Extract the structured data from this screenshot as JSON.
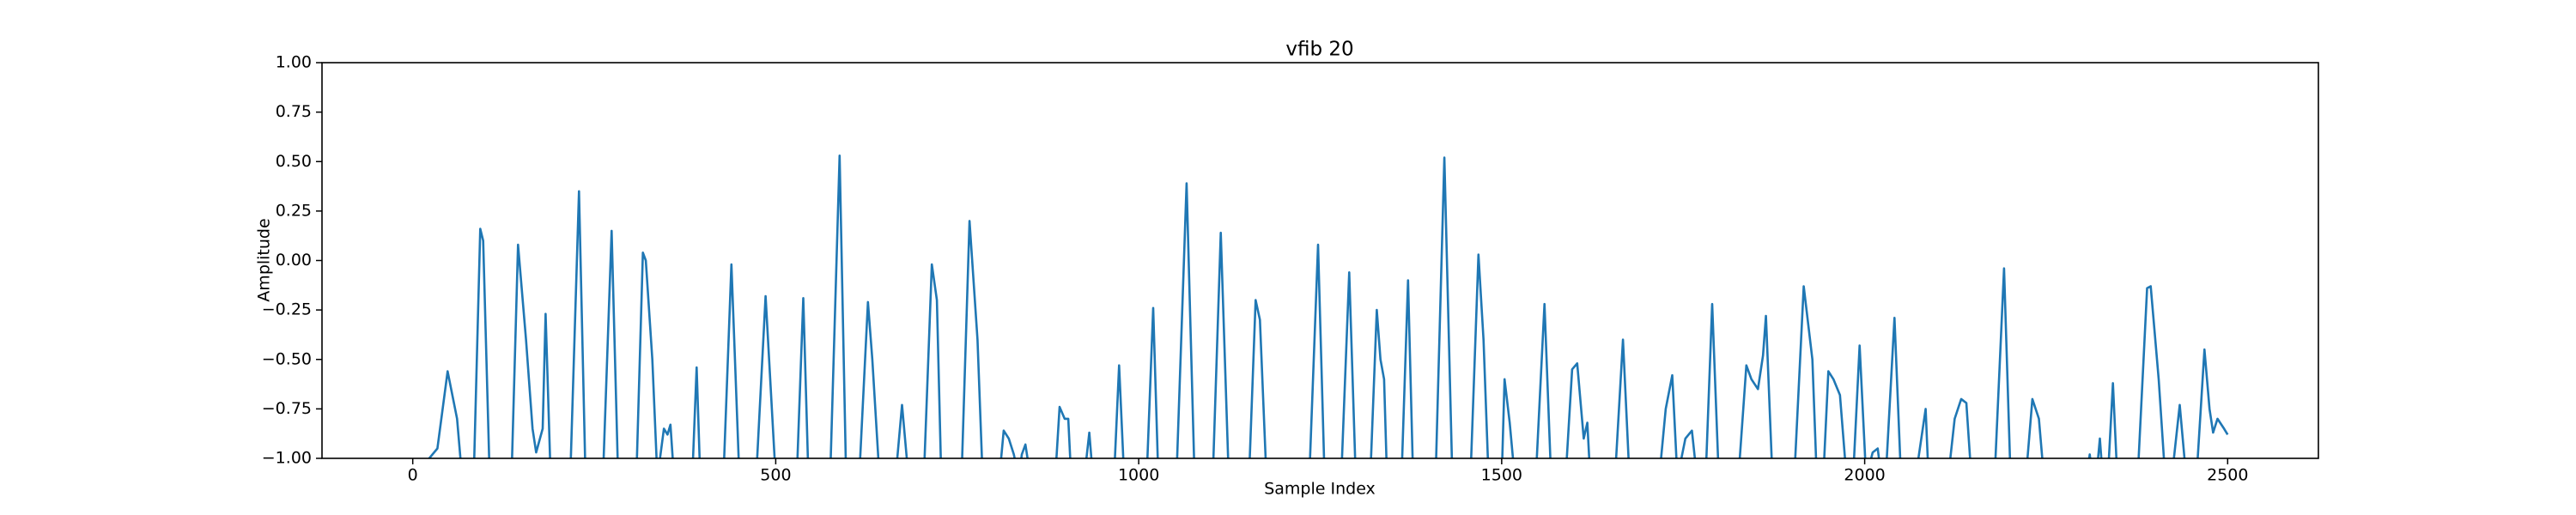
{
  "chart_data": {
    "type": "line",
    "title": "vfib 20",
    "xlabel": "Sample Index",
    "ylabel": "Amplitude",
    "x": [
      0,
      34,
      48,
      61,
      68,
      84,
      93,
      97,
      106,
      136,
      145,
      156,
      165,
      170,
      179,
      183,
      190,
      217,
      229,
      238,
      262,
      274,
      283,
      308,
      317,
      321,
      330,
      337,
      346,
      351,
      355,
      360,
      385,
      391,
      396,
      428,
      439,
      450,
      473,
      486,
      500,
      529,
      538,
      545,
      575,
      588,
      597,
      615,
      627,
      633,
      643,
      665,
      674,
      683,
      704,
      715,
      722,
      728,
      756,
      767,
      778,
      785,
      808,
      814,
      821,
      828,
      835,
      839,
      844,
      851,
      885,
      891,
      898,
      903,
      907,
      925,
      932,
      937,
      966,
      973,
      980,
      1011,
      1020,
      1027,
      1052,
      1066,
      1077,
      1102,
      1113,
      1124,
      1152,
      1161,
      1167,
      1176,
      1235,
      1247,
      1256,
      1279,
      1290,
      1299,
      1319,
      1328,
      1333,
      1338,
      1342,
      1362,
      1371,
      1378,
      1409,
      1421,
      1432,
      1457,
      1468,
      1475,
      1482,
      1500,
      1504,
      1511,
      1518,
      1547,
      1559,
      1568,
      1588,
      1597,
      1604,
      1613,
      1618,
      1622,
      1656,
      1667,
      1676,
      1717,
      1726,
      1735,
      1742,
      1753,
      1762,
      1769,
      1781,
      1790,
      1799,
      1826,
      1837,
      1844,
      1853,
      1860,
      1864,
      1873,
      1903,
      1916,
      1928,
      1934,
      1943,
      1950,
      1957,
      1966,
      1975,
      1984,
      1993,
      2002,
      2011,
      2018,
      2023,
      2029,
      2041,
      2050,
      2070,
      2084,
      2088,
      2115,
      2124,
      2133,
      2140,
      2147,
      2179,
      2192,
      2201,
      2222,
      2231,
      2240,
      2247,
      2305,
      2310,
      2314,
      2319,
      2324,
      2328,
      2335,
      2342,
      2348,
      2376,
      2389,
      2394,
      2405,
      2414,
      2423,
      2434,
      2443,
      2457,
      2468,
      2475,
      2480,
      2486,
      2495,
      2500
    ],
    "series": [
      {
        "name": "vfib 20",
        "color": "#1f77b4",
        "values": [
          -1.1,
          -0.95,
          -0.56,
          -0.8,
          -1.1,
          -1.1,
          0.16,
          0.1,
          -1.1,
          -1.1,
          0.08,
          -0.4,
          -0.85,
          -0.97,
          -0.85,
          -0.27,
          -1.1,
          -1.1,
          0.35,
          -1.1,
          -1.1,
          0.15,
          -1.1,
          -1.1,
          0.04,
          0.0,
          -0.5,
          -1.1,
          -0.85,
          -0.88,
          -0.83,
          -1.1,
          -1.1,
          -0.54,
          -1.1,
          -1.1,
          -0.02,
          -1.1,
          -1.1,
          -0.18,
          -1.1,
          -1.1,
          -0.19,
          -1.1,
          -1.1,
          0.53,
          -1.1,
          -1.1,
          -0.21,
          -0.5,
          -1.1,
          -1.1,
          -0.73,
          -1.1,
          -1.1,
          -0.02,
          -0.2,
          -1.1,
          -1.1,
          0.2,
          -0.4,
          -1.1,
          -1.1,
          -0.86,
          -0.9,
          -0.98,
          -1.1,
          -0.98,
          -0.93,
          -1.1,
          -1.1,
          -0.74,
          -0.8,
          -0.8,
          -1.1,
          -1.1,
          -0.87,
          -1.1,
          -1.1,
          -0.53,
          -1.1,
          -1.1,
          -0.24,
          -1.1,
          -1.1,
          0.39,
          -1.1,
          -1.1,
          0.14,
          -1.1,
          -1.1,
          -0.2,
          -0.3,
          -1.1,
          -1.1,
          0.08,
          -1.1,
          -1.1,
          -0.06,
          -1.1,
          -1.1,
          -0.25,
          -0.5,
          -0.6,
          -1.1,
          -1.1,
          -0.1,
          -1.1,
          -1.1,
          0.52,
          -1.1,
          -1.1,
          0.03,
          -0.4,
          -1.1,
          -1.1,
          -0.6,
          -0.82,
          -1.1,
          -1.1,
          -0.22,
          -1.1,
          -1.1,
          -0.55,
          -0.52,
          -0.9,
          -0.82,
          -1.1,
          -1.1,
          -0.4,
          -1.1,
          -1.1,
          -0.75,
          -0.58,
          -1.1,
          -0.9,
          -0.86,
          -1.1,
          -1.1,
          -0.22,
          -1.1,
          -1.1,
          -0.53,
          -0.6,
          -0.65,
          -0.48,
          -0.28,
          -1.1,
          -1.1,
          -0.13,
          -0.5,
          -1.1,
          -1.1,
          -0.56,
          -0.6,
          -0.68,
          -1.1,
          -1.1,
          -0.43,
          -1.1,
          -0.97,
          -0.95,
          -1.1,
          -1.1,
          -0.29,
          -1.1,
          -1.1,
          -0.75,
          -1.1,
          -1.1,
          -0.8,
          -0.7,
          -0.72,
          -1.1,
          -1.1,
          -0.04,
          -1.1,
          -1.1,
          -0.7,
          -0.8,
          -1.1,
          -1.1,
          -0.98,
          -1.1,
          -1.1,
          -0.9,
          -1.1,
          -1.1,
          -0.62,
          -1.1,
          -1.1,
          -0.14,
          -0.13,
          -0.6,
          -1.1,
          -1.1,
          -0.73,
          -1.1,
          -1.1,
          -0.45,
          -0.75,
          -0.87,
          -0.8,
          -0.85,
          -0.88
        ]
      }
    ],
    "xlim": [
      -125,
      2625
    ],
    "ylim": [
      -1,
      1
    ],
    "xticks": [
      0,
      500,
      1000,
      1500,
      2000,
      2500
    ],
    "yticks": [
      {
        "value": -1,
        "label": "−1.00"
      },
      {
        "value": -0.75,
        "label": "−0.75"
      },
      {
        "value": -0.5,
        "label": "−0.50"
      },
      {
        "value": -0.25,
        "label": "−0.25"
      },
      {
        "value": 0,
        "label": "0.00"
      },
      {
        "value": 0.25,
        "label": "0.25"
      },
      {
        "value": 0.5,
        "label": "0.50"
      },
      {
        "value": 0.75,
        "label": "0.75"
      },
      {
        "value": 1,
        "label": "1.00"
      }
    ],
    "grid": false
  }
}
